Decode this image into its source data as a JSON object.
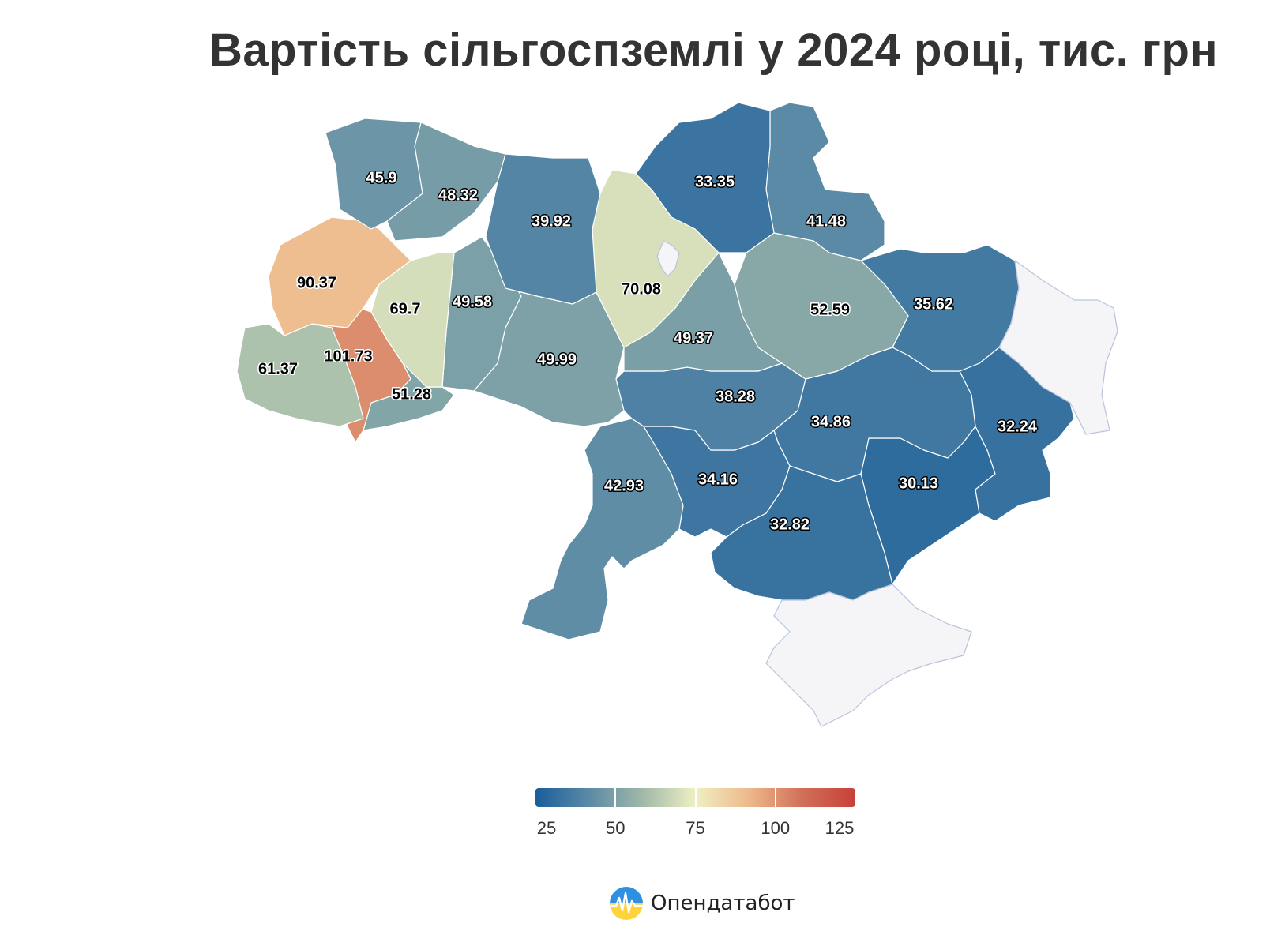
{
  "title": "Вартість сільгоспземлі у 2024 році, тис. грн",
  "map_data": {
    "type": "choropleth",
    "region_type": "oblast",
    "color_scale": {
      "min": 25,
      "max": 125,
      "stops": [
        "#1a5e9a",
        "#5b8aa6",
        "#9fb8a8",
        "#eef0c3",
        "#eeb98c",
        "#d07058",
        "#c8403a"
      ],
      "tick_values": [
        25,
        50,
        75,
        100,
        125
      ],
      "tick_labels": [
        "25",
        "50",
        "75",
        "100",
        "125"
      ]
    },
    "no_data_color": "#f5f5f7",
    "regions": [
      {
        "id": "volyn",
        "value": 45.9,
        "label": "45.9"
      },
      {
        "id": "rivne",
        "value": 48.32,
        "label": "48.32"
      },
      {
        "id": "zhytomyr",
        "value": 39.92,
        "label": "39.92"
      },
      {
        "id": "kyiv",
        "value": 70.08,
        "label": "70.08"
      },
      {
        "id": "chernihiv",
        "value": 33.35,
        "label": "33.35"
      },
      {
        "id": "sumy",
        "value": 41.48,
        "label": "41.48"
      },
      {
        "id": "lviv",
        "value": 90.37,
        "label": "90.37"
      },
      {
        "id": "ternopil",
        "value": 69.7,
        "label": "69.7"
      },
      {
        "id": "khmelnytskyi",
        "value": 49.58,
        "label": "49.58"
      },
      {
        "id": "poltava",
        "value": 52.59,
        "label": "52.59"
      },
      {
        "id": "kharkiv",
        "value": 35.62,
        "label": "35.62"
      },
      {
        "id": "zakarpattia",
        "value": 61.37,
        "label": "61.37"
      },
      {
        "id": "ivano-frankivsk",
        "value": 101.73,
        "label": "101.73"
      },
      {
        "id": "chernivtsi",
        "value": 51.28,
        "label": "51.28"
      },
      {
        "id": "vinnytsia",
        "value": 49.99,
        "label": "49.99"
      },
      {
        "id": "cherkasy",
        "value": 49.37,
        "label": "49.37"
      },
      {
        "id": "kirovohrad",
        "value": 38.28,
        "label": "38.28"
      },
      {
        "id": "dnipropetrovsk",
        "value": 34.86,
        "label": "34.86"
      },
      {
        "id": "donetsk",
        "value": 32.24,
        "label": "32.24"
      },
      {
        "id": "odesa",
        "value": 42.93,
        "label": "42.93"
      },
      {
        "id": "mykolaiv",
        "value": 34.16,
        "label": "34.16"
      },
      {
        "id": "kherson",
        "value": 32.82,
        "label": "32.82"
      },
      {
        "id": "zaporizhzhia",
        "value": 30.13,
        "label": "30.13"
      }
    ],
    "no_data_regions": [
      "luhansk",
      "crimea",
      "kyiv-city"
    ]
  },
  "brand": {
    "name": "Опендатабот",
    "icon": "opendatabot-logo-icon"
  }
}
